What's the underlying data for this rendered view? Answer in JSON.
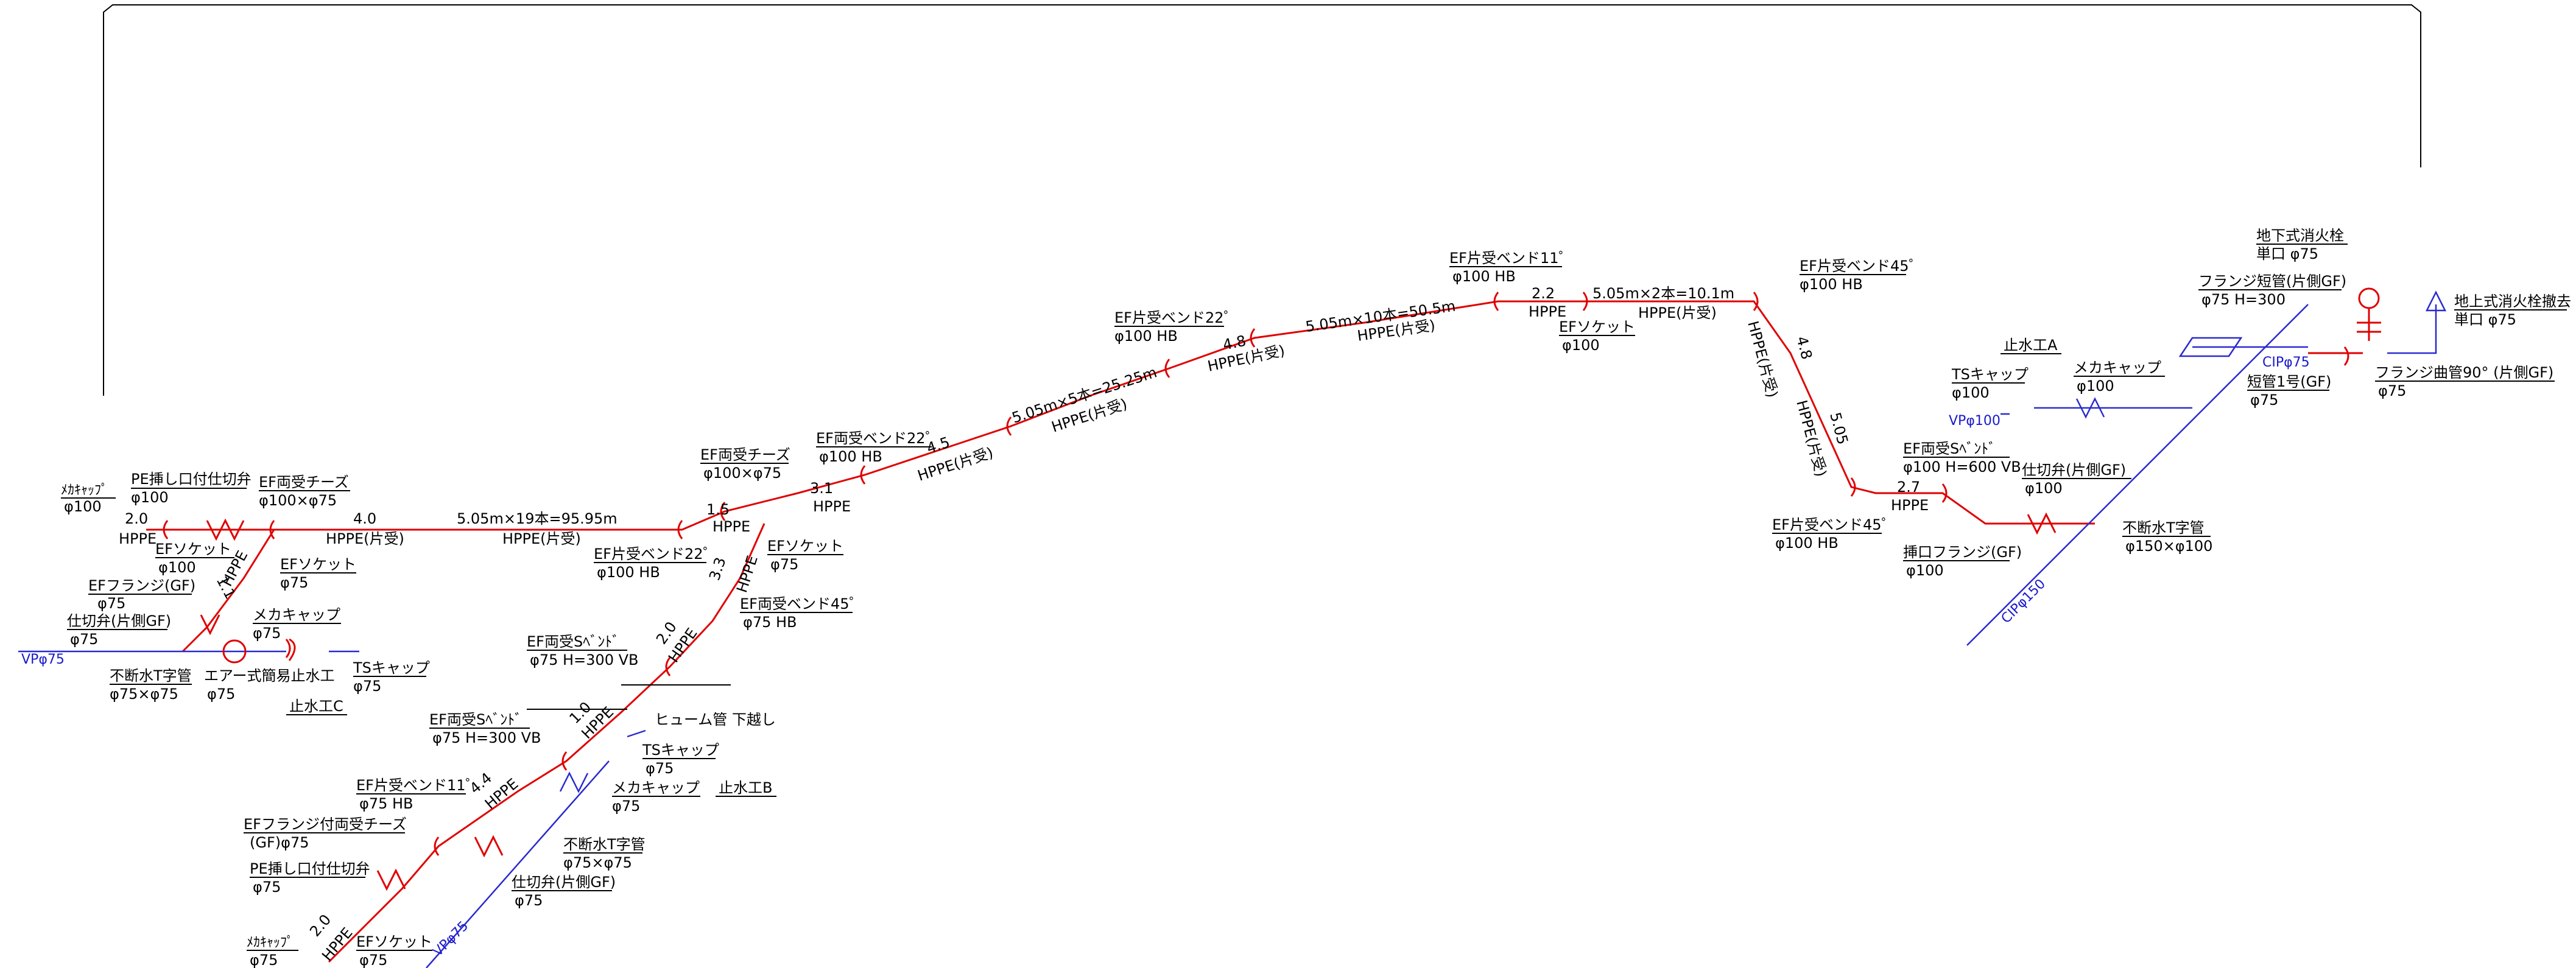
{
  "labels": {
    "meka_cap_tl": "ﾒｶｷｬｯﾌﾟ",
    "meka_cap_tl_d": "φ100",
    "pe_valve_top": "PE挿し口付仕切弁",
    "pe_valve_top_d": "φ100",
    "ef_tee_top": "EF両受チーズ",
    "ef_tee_top_d": "φ100×φ75",
    "hppe_20": "2.0",
    "hppe": "HPPE",
    "hppe_kata": "HPPE(片受)",
    "len_40": "4.0",
    "run_1": "5.05m×19本=95.95m",
    "ef_socket_a": "EFソケット",
    "ef_socket_a_d": "φ100",
    "len_11": "1.1",
    "ef_socket_b": "EFソケット",
    "ef_socket_b_d": "φ75",
    "ef_flange_gf": "EFフランジ(GF)",
    "ef_flange_gf_d": "φ75",
    "valve_gf_l": "仕切弁(片側GF)",
    "valve_gf_l_d": "φ75",
    "meka_cap_c": "メカキャップ",
    "meka_cap_c_d": "φ75",
    "vp75_l": "VPφ75",
    "fudan_t_l": "不断水T字管",
    "fudan_t_l_d": "φ75×φ75",
    "air_stop": "エアー式簡易止水工",
    "air_stop_d": "φ75",
    "ts_cap_c": "TSキャップ",
    "ts_cap_c_d": "φ75",
    "stop_c": "止水工C",
    "ef_tee_mid": "EF両受チーズ",
    "ef_tee_mid_d": "φ100×φ75",
    "len_15": "1.5",
    "ef_bend22_a": "EF片受ベンド22゜",
    "ef_bend22_a_d": "φ100 HB",
    "ef_socket_c": "EFソケット",
    "ef_socket_c_d": "φ75",
    "len_33": "3.3",
    "ef_bend45_a": "EF両受ベンド45゜",
    "ef_bend45_a_d": "φ75 HB",
    "len_31": "3.1",
    "ef_bend22_b": "EF両受ベンド22゜",
    "ef_bend22_b_d": "φ100 HB",
    "len_45": "4.5",
    "run_2": "5.05m×5本=25.25m",
    "ef_bend22_c": "EF片受ベンド22゜",
    "ef_bend22_c_d": "φ100 HB",
    "len_48a": "4.8",
    "run_3": "5.05m×10本=50.5m",
    "ef_bend11_top": "EF片受ベンド11゜",
    "ef_bend11_top_d": "φ100 HB",
    "len_22": "2.2",
    "run_4": "5.05m×2本=10.1m",
    "ef_socket_d": "EFソケット",
    "ef_socket_d_d": "φ100",
    "ef_bend45_b": "EF片受ベンド45゜",
    "ef_bend45_b_d": "φ100 HB",
    "len_48b": "4.8",
    "len_505": "5.05",
    "ef_bend45_c": "EF片受ベンド45゜",
    "ef_bend45_c_d": "φ100 HB",
    "ef_sbend_r": "EF両受Sﾍﾞﾝﾄﾞ",
    "ef_sbend_r_d": "φ100 H=600 VB",
    "len_27": "2.7",
    "insert_flange": "挿口フランジ(GF)",
    "insert_flange_d": "φ100",
    "valve_gf_r": "仕切弁(片側GF)",
    "valve_gf_r_d": "φ100",
    "fudan_t_r": "不断水T字管",
    "fudan_t_r_d": "φ150×φ100",
    "cip150": "CIPφ150",
    "stop_a": "止水工A",
    "ts_cap_a": "TSキャップ",
    "ts_cap_a_d": "φ100",
    "vp100": "VPφ100",
    "meka_cap_a": "メカキャップ",
    "meka_cap_a_d": "φ100",
    "hydrant_ug": "地下式消火栓",
    "hydrant_ug_d": "単口 φ75",
    "flange_short_gf": "フランジ短管(片側GF)",
    "flange_short_gf_d": "φ75 H=300",
    "hydrant_remove": "地上式消火栓撤去",
    "hydrant_remove_d": "単口 φ75",
    "cip75": "CIPφ75",
    "short_pipe1": "短管1号(GF)",
    "short_pipe1_d": "φ75",
    "flange_bend90": "フランジ曲管90° (片側GF)",
    "flange_bend90_d": "φ75",
    "ef_sbend_m": "EF両受Sﾍﾞﾝﾄﾞ",
    "ef_sbend_m_d": "φ75 H=300 VB",
    "len_20b": "2.0",
    "len_10": "1.0",
    "hume_pipe": "ヒューム管 下越し",
    "ef_sbend_l": "EF両受Sﾍﾞﾝﾄﾞ",
    "ef_sbend_l_d": "φ75 H=300 VB",
    "ts_cap_b": "TSキャップ",
    "ts_cap_b_d": "φ75",
    "meka_cap_b": "メカキャップ",
    "meka_cap_b_d": "φ75",
    "stop_b": "止水工B",
    "ef_bend11_l": "EF片受ベンド11゜",
    "ef_bend11_l_d": "φ75 HB",
    "len_44": "4.4",
    "ef_flange_tee": "EFフランジ付両受チーズ",
    "ef_flange_tee_d": "(GF)φ75",
    "fudan_t_b": "不断水T字管",
    "fudan_t_b_d": "φ75×φ75",
    "pe_valve_b": "PE挿し口付仕切弁",
    "pe_valve_b_d": "φ75",
    "valve_gf_b": "仕切弁(片側GF)",
    "valve_gf_b_d": "φ75",
    "vp75_b": "VPφ75",
    "meka_cap_bl": "ﾒｶｷｬｯﾌﾟ",
    "meka_cap_bl_d": "φ75",
    "len_20c": "2.0",
    "ef_socket_e": "EFソケット",
    "ef_socket_e_d": "φ75"
  },
  "colors": {
    "pipe_pe": "#e00000",
    "pipe_existing": "#2a2ad0",
    "line": "#000000"
  }
}
